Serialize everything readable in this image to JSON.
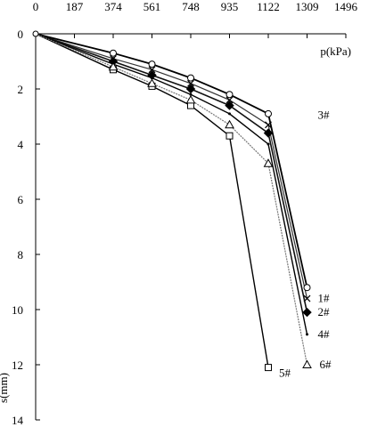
{
  "chart_data": {
    "type": "line",
    "xlabel": "p(kPa)",
    "ylabel": "s(mm)",
    "xlim": [
      0,
      1496
    ],
    "ylim": [
      0,
      14
    ],
    "x_ticks": [
      "0",
      "187",
      "374",
      "561",
      "748",
      "935",
      "1122",
      "1309",
      "1496"
    ],
    "y_ticks": [
      "0",
      "2",
      "4",
      "6",
      "8",
      "10",
      "12",
      "14"
    ],
    "grid": false,
    "series": [
      {
        "name": "1#",
        "marker": "x",
        "points": [
          [
            0,
            0
          ],
          [
            374,
            0.9
          ],
          [
            561,
            1.3
          ],
          [
            748,
            1.8
          ],
          [
            935,
            2.4
          ],
          [
            1122,
            3.3
          ],
          [
            1309,
            9.6
          ]
        ]
      },
      {
        "name": "2#",
        "marker": "diamond",
        "points": [
          [
            0,
            0
          ],
          [
            374,
            1.0
          ],
          [
            561,
            1.5
          ],
          [
            748,
            2.0
          ],
          [
            935,
            2.6
          ],
          [
            1122,
            3.6
          ],
          [
            1309,
            10.1
          ]
        ]
      },
      {
        "name": "3#",
        "marker": "circle",
        "points": [
          [
            0,
            0
          ],
          [
            374,
            0.7
          ],
          [
            561,
            1.1
          ],
          [
            748,
            1.6
          ],
          [
            935,
            2.2
          ],
          [
            1122,
            2.9
          ],
          [
            1309,
            9.2
          ]
        ]
      },
      {
        "name": "4#",
        "marker": "none",
        "points": [
          [
            0,
            0
          ],
          [
            374,
            1.1
          ],
          [
            561,
            1.6
          ],
          [
            748,
            2.2
          ],
          [
            935,
            2.9
          ],
          [
            1122,
            4.0
          ],
          [
            1309,
            10.9
          ]
        ]
      },
      {
        "name": "5#",
        "marker": "square",
        "points": [
          [
            0,
            0
          ],
          [
            374,
            1.3
          ],
          [
            561,
            1.9
          ],
          [
            748,
            2.6
          ],
          [
            935,
            3.7
          ],
          [
            1122,
            12.1
          ]
        ]
      },
      {
        "name": "6#",
        "marker": "triangle",
        "points": [
          [
            0,
            0
          ],
          [
            374,
            1.2
          ],
          [
            561,
            1.8
          ],
          [
            748,
            2.4
          ],
          [
            935,
            3.3
          ],
          [
            1122,
            4.7
          ],
          [
            1309,
            12.0
          ]
        ]
      }
    ]
  }
}
